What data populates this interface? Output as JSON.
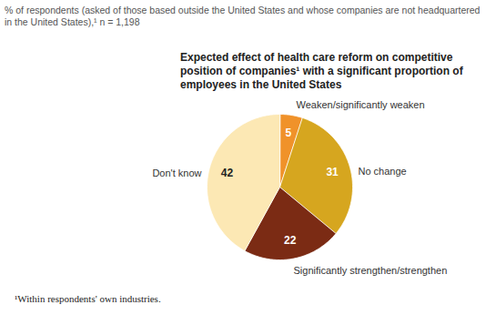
{
  "chart_data": {
    "type": "pie",
    "subtitle": "% of respondents (asked of those based outside the United States and whose companies are not headquartered in the United States),¹ n = 1,198",
    "title": "Expected effect of health care reform on competitive position of companies¹ with a significant proportion of employees in the United States",
    "footnote": "¹Within respondents' own industries.",
    "categories": [
      "Weaken/significantly weaken",
      "No change",
      "Significantly strengthen/strengthen",
      "Don't know"
    ],
    "values": [
      5,
      31,
      22,
      42
    ],
    "colors": [
      "#f0922a",
      "#d6a61f",
      "#7b2b14",
      "#fce8b4"
    ],
    "data_labels": true
  }
}
